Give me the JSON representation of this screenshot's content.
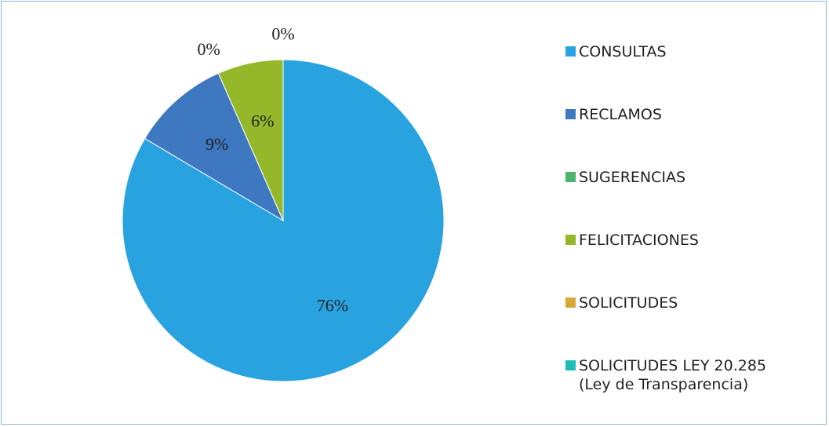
{
  "chart_data": {
    "type": "pie",
    "categories": [
      "CONSULTAS",
      "RECLAMOS",
      "SUGERENCIAS",
      "FELICITACIONES",
      "SOLICITUDES",
      "SOLICITUDES LEY 20.285\n(Ley de Transparencia)"
    ],
    "values": [
      76,
      9,
      0,
      6,
      0,
      0
    ],
    "value_labels": [
      "76%",
      "9%",
      "0%",
      "6%",
      "0%",
      null
    ],
    "colors": [
      "#29a3e0",
      "#3d78c1",
      "#4bb56b",
      "#94b829",
      "#d9a83a",
      "#1dbfb5"
    ],
    "legend": "right"
  }
}
